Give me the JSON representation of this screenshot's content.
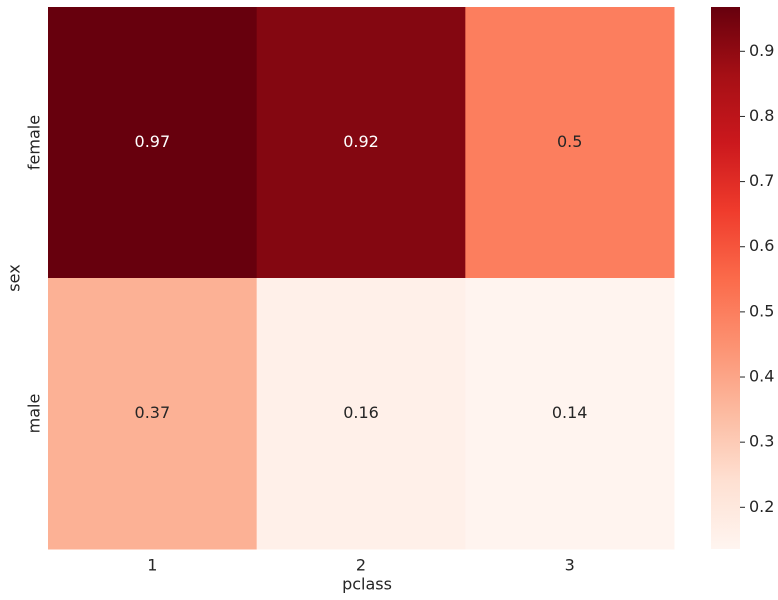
{
  "chart_data": {
    "type": "heatmap",
    "x_label": "pclass",
    "y_label": "sex",
    "categories": [
      "1",
      "2",
      "3"
    ],
    "rows": [
      "female",
      "male"
    ],
    "values": [
      [
        0.97,
        0.92,
        0.5
      ],
      [
        0.37,
        0.16,
        0.14
      ]
    ],
    "colormap": "Reds",
    "zlim": [
      0.136,
      0.968
    ],
    "zticks": [
      0.2,
      0.3,
      0.4,
      0.5,
      0.6,
      0.7,
      0.8,
      0.9
    ]
  }
}
